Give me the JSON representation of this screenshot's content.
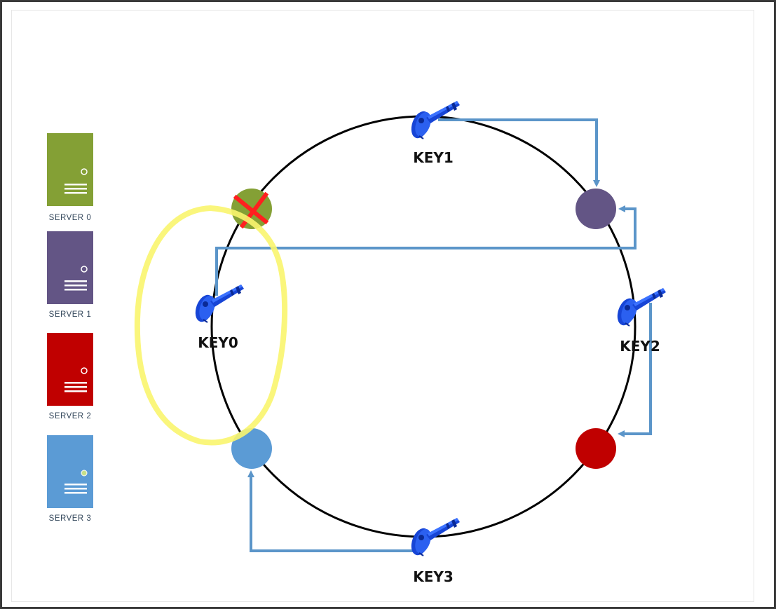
{
  "servers": [
    {
      "label": "SERVER 0",
      "color": "#84a035",
      "led": "#ffffff"
    },
    {
      "label": "SERVER 1",
      "color": "#635585",
      "led": "#ffffff"
    },
    {
      "label": "SERVER 2",
      "color": "#c00000",
      "led": "#ffffff"
    },
    {
      "label": "SERVER 3",
      "color": "#5b9bd5",
      "led": "#c6e08a"
    }
  ],
  "keys": [
    {
      "label": "KEY0"
    },
    {
      "label": "KEY1"
    },
    {
      "label": "KEY2"
    },
    {
      "label": "KEY3"
    }
  ],
  "ring_nodes": [
    {
      "server": "SERVER 0",
      "color": "#84a035",
      "removed": true
    },
    {
      "server": "SERVER 1",
      "color": "#635585",
      "removed": false
    },
    {
      "server": "SERVER 2",
      "color": "#c00000",
      "removed": false
    },
    {
      "server": "SERVER 3",
      "color": "#5b9bd5",
      "removed": false
    }
  ],
  "colors": {
    "arrow": "#5b95c9",
    "ring": "#000000",
    "highlight": "#faf56e",
    "remove_mark": "#ff1f1f",
    "key_fill": "#1745d6",
    "key_dark": "#0a2a96"
  }
}
